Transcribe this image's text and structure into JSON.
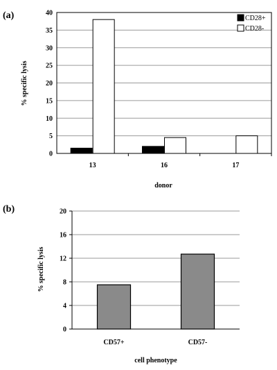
{
  "chart_data": [
    {
      "panel_label": "(a)",
      "type": "bar",
      "categories": [
        "13",
        "16",
        "17"
      ],
      "series": [
        {
          "name": "CD28+",
          "values": [
            1.5,
            2,
            0
          ],
          "color": "#000000"
        },
        {
          "name": "CD28-",
          "values": [
            38,
            4.5,
            5
          ],
          "color": "#ffffff"
        }
      ],
      "xlabel": "donor",
      "ylabel": "% specific lysis",
      "ylim": [
        0,
        40
      ],
      "yticks": [
        "0",
        "5",
        "10",
        "15",
        "20",
        "25",
        "30",
        "35",
        "40"
      ],
      "grid": true,
      "legend": "top-right"
    },
    {
      "panel_label": "(b)",
      "type": "bar",
      "categories": [
        "CD57+",
        "CD57-"
      ],
      "values": [
        7.5,
        12.7
      ],
      "color": "#8a8a8a",
      "xlabel": "cell phenotype",
      "ylabel": "% specific lysis",
      "ylim": [
        0,
        20
      ],
      "yticks": [
        "0",
        "4",
        "8",
        "12",
        "16",
        "20"
      ],
      "grid": true
    }
  ]
}
